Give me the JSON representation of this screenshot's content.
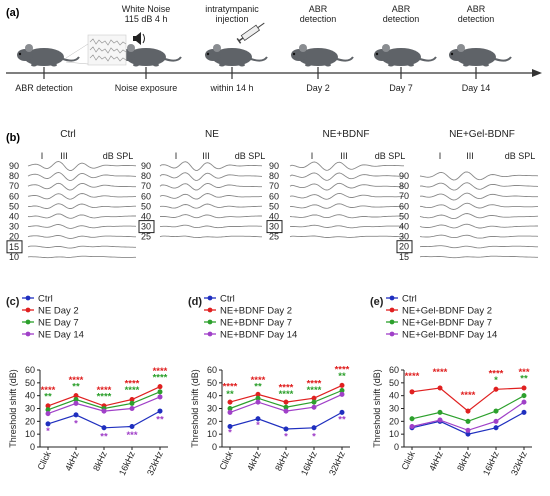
{
  "panel_a": {
    "label": "(a)",
    "events": [
      {
        "text": [
          "ABR detection"
        ]
      },
      {
        "text": [
          "White Noise",
          "115 dB 4 h"
        ],
        "below": "Noise exposure"
      },
      {
        "text": [
          "intratympanic",
          "injection"
        ],
        "below": "within 14 h"
      },
      {
        "text": [
          "ABR",
          "detection"
        ],
        "below": "Day 2"
      },
      {
        "text": [
          "ABR",
          "detection"
        ],
        "below": "Day 7"
      },
      {
        "text": [
          "ABR",
          "detection"
        ],
        "below": "Day 14"
      }
    ],
    "first_below": "ABR detection"
  },
  "panel_b": {
    "label": "(b)",
    "groups": [
      {
        "title": "Ctrl",
        "waves": [
          "I",
          "III"
        ],
        "unit": "dB SPL",
        "levels": [
          "90",
          "80",
          "70",
          "60",
          "50",
          "40",
          "30",
          "20",
          "15",
          "10"
        ],
        "threshold": "15"
      },
      {
        "title": "NE",
        "waves": [
          "I",
          "III"
        ],
        "unit": "dB SPL",
        "levels": [
          "90",
          "80",
          "70",
          "60",
          "50",
          "40",
          "30",
          "25"
        ],
        "threshold": "30"
      },
      {
        "title": "NE+BDNF",
        "waves": [
          "I",
          "III"
        ],
        "unit": "dB SPL",
        "levels": [
          "90",
          "80",
          "70",
          "60",
          "50",
          "40",
          "30",
          "25"
        ],
        "threshold": "30"
      },
      {
        "title": "NE+Gel-BDNF",
        "waves": [
          "I",
          "III"
        ],
        "unit": "dB SPL",
        "levels": [
          "90",
          "80",
          "70",
          "60",
          "50",
          "40",
          "30",
          "20",
          "15"
        ],
        "threshold": "20"
      }
    ]
  },
  "colors": {
    "blue": "#1f2fbf",
    "red": "#e02020",
    "green": "#2ca02c",
    "purple": "#a040c8"
  },
  "chart_data": [
    {
      "panel": "(c)",
      "type": "line",
      "ylabel": "Threshold shift (dB)",
      "ylim": [
        0,
        60
      ],
      "yticks": [
        0,
        10,
        20,
        30,
        40,
        50,
        60
      ],
      "categories": [
        "Click",
        "4kHz",
        "8kHz",
        "16kHz",
        "32kHz"
      ],
      "series": [
        {
          "name": "Ctrl",
          "color": "#1f2fbf",
          "values": [
            18,
            25,
            15,
            16,
            28
          ]
        },
        {
          "name": "NE Day 2",
          "color": "#e02020",
          "values": [
            32,
            40,
            32,
            37,
            47
          ]
        },
        {
          "name": "NE Day 7",
          "color": "#2ca02c",
          "values": [
            29,
            37,
            30,
            34,
            43
          ]
        },
        {
          "name": "NE Day 14",
          "color": "#a040c8",
          "values": [
            26,
            34,
            28,
            30,
            39
          ]
        }
      ],
      "annotations": [
        {
          "cat": 0,
          "y": 42,
          "text": "****",
          "color": "#e02020"
        },
        {
          "cat": 0,
          "y": 37,
          "text": "**",
          "color": "#2ca02c"
        },
        {
          "cat": 0,
          "y": 10,
          "text": "*",
          "color": "#a040c8"
        },
        {
          "cat": 1,
          "y": 50,
          "text": "****",
          "color": "#e02020"
        },
        {
          "cat": 1,
          "y": 45,
          "text": "**",
          "color": "#2ca02c"
        },
        {
          "cat": 1,
          "y": 16,
          "text": "*",
          "color": "#a040c8"
        },
        {
          "cat": 2,
          "y": 42,
          "text": "****",
          "color": "#e02020"
        },
        {
          "cat": 2,
          "y": 37,
          "text": "****",
          "color": "#2ca02c"
        },
        {
          "cat": 2,
          "y": 6,
          "text": "**",
          "color": "#a040c8"
        },
        {
          "cat": 3,
          "y": 47,
          "text": "****",
          "color": "#e02020"
        },
        {
          "cat": 3,
          "y": 42,
          "text": "****",
          "color": "#2ca02c"
        },
        {
          "cat": 3,
          "y": 7,
          "text": "***",
          "color": "#a040c8"
        },
        {
          "cat": 4,
          "y": 57,
          "text": "****",
          "color": "#e02020"
        },
        {
          "cat": 4,
          "y": 52,
          "text": "****",
          "color": "#2ca02c"
        },
        {
          "cat": 4,
          "y": 19,
          "text": "**",
          "color": "#a040c8"
        }
      ]
    },
    {
      "panel": "(d)",
      "type": "line",
      "ylabel": "Threshold shift (dB)",
      "ylim": [
        0,
        60
      ],
      "yticks": [
        0,
        10,
        20,
        30,
        40,
        50,
        60
      ],
      "categories": [
        "Click",
        "4kHz",
        "8kHz",
        "16kHz",
        "32kHz"
      ],
      "series": [
        {
          "name": "Ctrl",
          "color": "#1f2fbf",
          "values": [
            16,
            22,
            14,
            15,
            27
          ]
        },
        {
          "name": "NE+BDNF Day 2",
          "color": "#e02020",
          "values": [
            35,
            41,
            35,
            38,
            48
          ]
        },
        {
          "name": "NE+BDNF Day 7",
          "color": "#2ca02c",
          "values": [
            30,
            38,
            31,
            35,
            44
          ]
        },
        {
          "name": "NE+BDNF Day 14",
          "color": "#a040c8",
          "values": [
            27,
            35,
            28,
            31,
            41
          ]
        }
      ],
      "annotations": [
        {
          "cat": 0,
          "y": 45,
          "text": "****",
          "color": "#e02020"
        },
        {
          "cat": 0,
          "y": 39,
          "text": "**",
          "color": "#2ca02c"
        },
        {
          "cat": 0,
          "y": 9,
          "text": "*",
          "color": "#a040c8"
        },
        {
          "cat": 1,
          "y": 50,
          "text": "****",
          "color": "#e02020"
        },
        {
          "cat": 1,
          "y": 45,
          "text": "**",
          "color": "#2ca02c"
        },
        {
          "cat": 1,
          "y": 15,
          "text": "*",
          "color": "#a040c8"
        },
        {
          "cat": 2,
          "y": 44,
          "text": "****",
          "color": "#e02020"
        },
        {
          "cat": 2,
          "y": 39,
          "text": "****",
          "color": "#2ca02c"
        },
        {
          "cat": 2,
          "y": 6,
          "text": "*",
          "color": "#a040c8"
        },
        {
          "cat": 3,
          "y": 47,
          "text": "****",
          "color": "#e02020"
        },
        {
          "cat": 3,
          "y": 42,
          "text": "****",
          "color": "#2ca02c"
        },
        {
          "cat": 3,
          "y": 6,
          "text": "*",
          "color": "#a040c8"
        },
        {
          "cat": 4,
          "y": 58,
          "text": "****",
          "color": "#e02020"
        },
        {
          "cat": 4,
          "y": 53,
          "text": "**",
          "color": "#2ca02c"
        },
        {
          "cat": 4,
          "y": 19,
          "text": "**",
          "color": "#a040c8"
        }
      ]
    },
    {
      "panel": "(e)",
      "type": "line",
      "ylabel": "Threshold shift (dB)",
      "ylim": [
        0,
        60
      ],
      "yticks": [
        0,
        10,
        20,
        30,
        40,
        50,
        60
      ],
      "categories": [
        "Click",
        "4kHz",
        "8kHz",
        "16kHz",
        "32kHz"
      ],
      "series": [
        {
          "name": "Ctrl",
          "color": "#1f2fbf",
          "values": [
            15,
            20,
            10,
            15,
            27
          ]
        },
        {
          "name": "NE+Gel-BDNF Day 2",
          "color": "#e02020",
          "values": [
            43,
            46,
            28,
            45,
            46
          ]
        },
        {
          "name": "NE+Gel-BDNF Day 7",
          "color": "#2ca02c",
          "values": [
            22,
            27,
            20,
            28,
            40
          ]
        },
        {
          "name": "NE+Gel-BDNF Day 14",
          "color": "#a040c8",
          "values": [
            16,
            21,
            13,
            20,
            35
          ]
        }
      ],
      "annotations": [
        {
          "cat": 0,
          "y": 53,
          "text": "****",
          "color": "#e02020"
        },
        {
          "cat": 1,
          "y": 56,
          "text": "****",
          "color": "#e02020"
        },
        {
          "cat": 2,
          "y": 38,
          "text": "****",
          "color": "#e02020"
        },
        {
          "cat": 3,
          "y": 55,
          "text": "****",
          "color": "#e02020"
        },
        {
          "cat": 3,
          "y": 50,
          "text": "*",
          "color": "#2ca02c"
        },
        {
          "cat": 4,
          "y": 56,
          "text": "***",
          "color": "#e02020"
        },
        {
          "cat": 4,
          "y": 51,
          "text": "**",
          "color": "#2ca02c"
        }
      ]
    }
  ]
}
